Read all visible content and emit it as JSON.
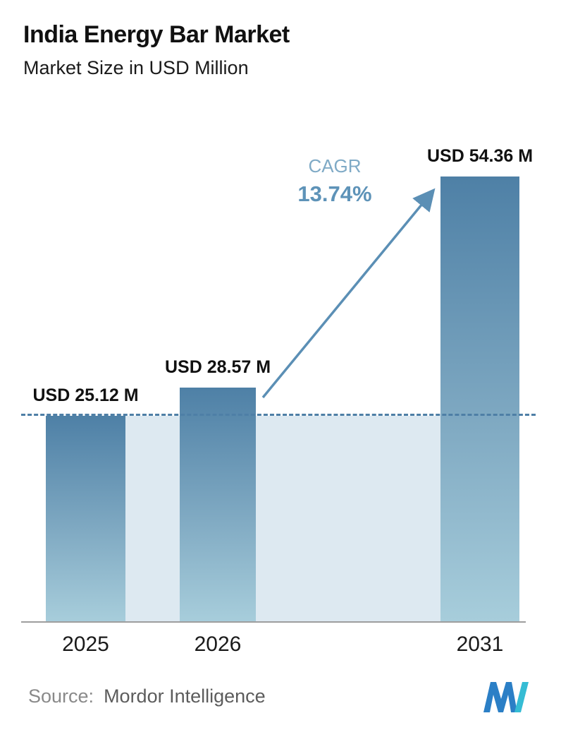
{
  "header": {
    "title": "India Energy Bar Market",
    "subtitle": "Market Size in USD Million"
  },
  "chart_data": {
    "type": "bar",
    "title": "India Energy Bar Market",
    "subtitle": "Market Size in USD Million",
    "unit": "USD Million",
    "categories": [
      "2025",
      "2026",
      "2031"
    ],
    "values": [
      25.12,
      28.57,
      54.36
    ],
    "bars": [
      {
        "category": "2025",
        "value": 25.12,
        "label": "USD 25.12 M"
      },
      {
        "category": "2026",
        "value": 28.57,
        "label": "USD 28.57 M"
      },
      {
        "category": "2031",
        "value": 54.36,
        "label": "USD 54.36 M"
      }
    ],
    "cagr_label": "CAGR",
    "cagr_value": "13.74%",
    "reference_line": {
      "style": "dashed",
      "at_value": 25.12
    },
    "legend": "none",
    "grid": "off",
    "colors": {
      "bar_top": "#4e80a6",
      "bar_bottom": "#a7cddb",
      "band": "#dde9f1",
      "dashed_line": "#4e7fa6",
      "accent_text": "#5e93b8",
      "axis": "#9e9e9e"
    }
  },
  "footer": {
    "source_label": "Source:",
    "source_value": "Mordor Intelligence",
    "logo": "mordor-intelligence-logo"
  }
}
